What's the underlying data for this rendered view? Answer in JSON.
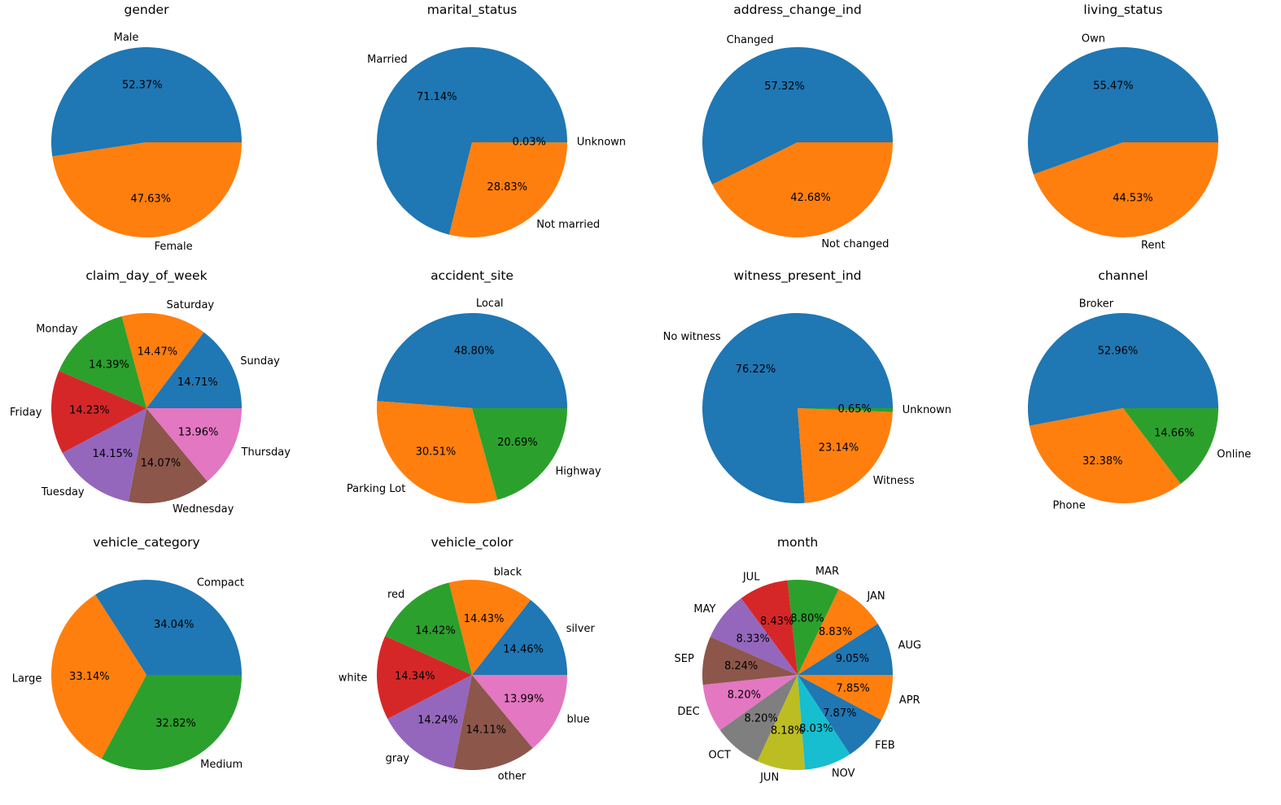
{
  "figure": {
    "background": "#ffffff"
  },
  "palette": [
    "#1f77b4",
    "#ff7f0e",
    "#2ca02c",
    "#d62728",
    "#9467bd",
    "#8c564b",
    "#e377c2",
    "#7f7f7f",
    "#bcbd22",
    "#17becf"
  ],
  "chart_data": [
    {
      "type": "pie",
      "title": "gender",
      "labels": [
        "Male",
        "Female"
      ],
      "values": [
        52.37,
        47.63
      ],
      "value_labels": [
        "52.37%",
        "47.63%"
      ]
    },
    {
      "type": "pie",
      "title": "marital_status",
      "labels": [
        "Married",
        "Not married",
        "Unknown"
      ],
      "values": [
        71.14,
        28.83,
        0.03
      ],
      "value_labels": [
        "71.14%",
        "28.83%",
        "0.03%"
      ]
    },
    {
      "type": "pie",
      "title": "address_change_ind",
      "labels": [
        "Changed",
        "Not changed"
      ],
      "values": [
        57.32,
        42.68
      ],
      "value_labels": [
        "57.32%",
        "42.68%"
      ]
    },
    {
      "type": "pie",
      "title": "living_status",
      "labels": [
        "Own",
        "Rent"
      ],
      "values": [
        55.47,
        44.53
      ],
      "value_labels": [
        "55.47%",
        "44.53%"
      ]
    },
    {
      "type": "pie",
      "title": "claim_day_of_week",
      "labels": [
        "Sunday",
        "Saturday",
        "Monday",
        "Friday",
        "Tuesday",
        "Wednesday",
        "Thursday"
      ],
      "values": [
        14.71,
        14.47,
        14.39,
        14.23,
        14.15,
        14.07,
        13.96
      ],
      "value_labels": [
        "14.71%",
        "14.47%",
        "14.39%",
        "14.23%",
        "14.15%",
        "14.07%",
        "13.96%"
      ]
    },
    {
      "type": "pie",
      "title": "accident_site",
      "labels": [
        "Local",
        "Parking Lot",
        "Highway"
      ],
      "values": [
        48.8,
        30.51,
        20.69
      ],
      "value_labels": [
        "48.80%",
        "30.51%",
        "20.69%"
      ]
    },
    {
      "type": "pie",
      "title": "witness_present_ind",
      "labels": [
        "No witness",
        "Witness",
        "Unknown"
      ],
      "values": [
        76.22,
        23.14,
        0.65
      ],
      "value_labels": [
        "76.22%",
        "23.14%",
        "0.65%"
      ]
    },
    {
      "type": "pie",
      "title": "channel",
      "labels": [
        "Broker",
        "Phone",
        "Online"
      ],
      "values": [
        52.96,
        32.38,
        14.66
      ],
      "value_labels": [
        "52.96%",
        "32.38%",
        "14.66%"
      ]
    },
    {
      "type": "pie",
      "title": "vehicle_category",
      "labels": [
        "Compact",
        "Large",
        "Medium"
      ],
      "values": [
        34.04,
        33.14,
        32.82
      ],
      "value_labels": [
        "34.04%",
        "33.14%",
        "32.82%"
      ]
    },
    {
      "type": "pie",
      "title": "vehicle_color",
      "labels": [
        "silver",
        "black",
        "red",
        "white",
        "gray",
        "other",
        "blue"
      ],
      "values": [
        14.46,
        14.43,
        14.42,
        14.34,
        14.24,
        14.11,
        13.99
      ],
      "value_labels": [
        "14.46%",
        "14.43%",
        "14.42%",
        "14.34%",
        "14.24%",
        "14.11%",
        "13.99%"
      ]
    },
    {
      "type": "pie",
      "title": "month",
      "labels": [
        "AUG",
        "JAN",
        "MAR",
        "JUL",
        "MAY",
        "SEP",
        "DEC",
        "OCT",
        "JUN",
        "NOV",
        "FEB",
        "APR"
      ],
      "values": [
        9.05,
        8.83,
        8.8,
        8.43,
        8.33,
        8.24,
        8.2,
        8.2,
        8.18,
        8.03,
        7.87,
        7.85
      ],
      "value_labels": [
        "9.05%",
        "8.83%",
        "8.80%",
        "8.43%",
        "8.33%",
        "8.24%",
        "8.20%",
        "8.20%",
        "8.18%",
        "8.03%",
        "7.87%",
        "7.85%"
      ]
    }
  ]
}
